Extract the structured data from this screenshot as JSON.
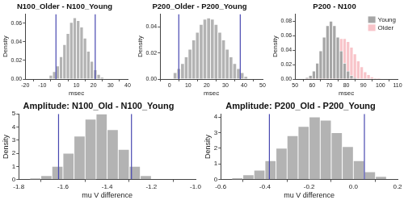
{
  "chart_data": [
    {
      "type": "histogram",
      "title": "N100_Older - N100_Young",
      "x_label": "msec",
      "y_label": "Density",
      "bins": [
        -6,
        -4,
        -2,
        0,
        2,
        4,
        6,
        8,
        10,
        12,
        14,
        16,
        18,
        20,
        22,
        24,
        26
      ],
      "values": [
        0.004,
        0.008,
        0.014,
        0.024,
        0.037,
        0.049,
        0.061,
        0.066,
        0.063,
        0.056,
        0.044,
        0.03,
        0.019,
        0.01,
        0.005,
        0.002
      ],
      "color": "#b3b3b3",
      "ci_lines": [
        -2,
        21
      ],
      "xlim": [
        -20,
        40
      ],
      "xticks": [
        -20,
        -10,
        0,
        10,
        20,
        30,
        40
      ],
      "ylim": [
        0,
        0.07
      ],
      "yticks": [
        {
          "value": 0,
          "label": "0.00"
        },
        {
          "value": 0.02,
          "label": "0.02"
        },
        {
          "value": 0.04,
          "label": "0.04"
        },
        {
          "value": 0.06,
          "label": "0.06"
        }
      ],
      "grid": false
    },
    {
      "type": "histogram",
      "title": "P200_Older - P200_Young",
      "x_label": "msec",
      "y_label": "Density",
      "bins": [
        2,
        4,
        6,
        8,
        10,
        12,
        14,
        16,
        18,
        20,
        22,
        24,
        26,
        28,
        30,
        32,
        34,
        36,
        38,
        40,
        42
      ],
      "values": [
        0.005,
        0.008,
        0.012,
        0.017,
        0.023,
        0.03,
        0.036,
        0.042,
        0.046,
        0.047,
        0.046,
        0.042,
        0.036,
        0.03,
        0.023,
        0.017,
        0.012,
        0.008,
        0.005,
        0.002
      ],
      "color": "#b3b3b3",
      "ci_lines": [
        5,
        38
      ],
      "xlim": [
        -5,
        50
      ],
      "xticks": [
        0,
        10,
        20,
        30,
        40,
        50
      ],
      "ylim": [
        0,
        0.05
      ],
      "yticks": [
        {
          "value": 0,
          "label": "0.00"
        },
        {
          "value": 0.02,
          "label": "0.02"
        },
        {
          "value": 0.04,
          "label": "0.04"
        }
      ],
      "grid": false
    },
    {
      "type": "histogram",
      "title": "P200 - N100",
      "x_label": "msec",
      "y_label": "Density",
      "bins": [
        56,
        58,
        60,
        62,
        64,
        66,
        68,
        70,
        72,
        74,
        76,
        78,
        80,
        82,
        84,
        86,
        88,
        90,
        92,
        94,
        96,
        98,
        100
      ],
      "series": [
        {
          "name": "Young",
          "color": "#a6a6a6",
          "values": [
            0.002,
            0.005,
            0.011,
            0.022,
            0.039,
            0.058,
            0.074,
            0.08,
            0.074,
            0.058,
            0.039,
            0.022,
            0.011,
            0.005,
            0.002,
            0,
            0,
            0,
            0,
            0,
            0,
            0
          ]
        },
        {
          "name": "Older",
          "color": "#f4a0a8",
          "values": [
            0.001,
            0.001,
            0.003,
            0.006,
            0.01,
            0.017,
            0.025,
            0.035,
            0.044,
            0.052,
            0.056,
            0.056,
            0.052,
            0.044,
            0.035,
            0.025,
            0.017,
            0.01,
            0.006,
            0.003,
            0.001,
            0.001
          ]
        }
      ],
      "legend": "top-right",
      "xlim": [
        50,
        110
      ],
      "xticks": [
        50,
        60,
        70,
        80,
        90,
        100,
        110
      ],
      "ylim": [
        0,
        0.09
      ],
      "yticks": [
        {
          "value": 0,
          "label": "0.00"
        },
        {
          "value": 0.02,
          "label": "0.02"
        },
        {
          "value": 0.04,
          "label": "0.04"
        },
        {
          "value": 0.06,
          "label": "0.06"
        },
        {
          "value": 0.08,
          "label": "0.08"
        }
      ],
      "grid": false
    },
    {
      "type": "histogram",
      "title": "Amplitude: N100_Old - N100_Young",
      "x_label": "mu V difference",
      "y_label": "Density",
      "bins": [
        -1.75,
        -1.7,
        -1.65,
        -1.6,
        -1.55,
        -1.5,
        -1.45,
        -1.4,
        -1.35,
        -1.3,
        -1.25,
        -1.2
      ],
      "values": [
        0.1,
        0.3,
        1.0,
        2.0,
        3.3,
        4.6,
        5.0,
        3.8,
        2.3,
        1.0,
        0.3
      ],
      "color": "#b3b3b3",
      "ci_lines": [
        -1.62,
        -1.29
      ],
      "xlim": [
        -1.8,
        -1.0
      ],
      "xticks": [
        -1.8,
        -1.6,
        -1.4,
        -1.2,
        {
          "value": -1.0,
          "label": "-1.0"
        }
      ],
      "ylim": [
        0,
        5
      ],
      "yticks": [
        0,
        1,
        2,
        3,
        4,
        5
      ],
      "grid": false
    },
    {
      "type": "histogram",
      "title": "Amplitude: P200_Old - P200_Young",
      "x_label": "mu V difference",
      "y_label": "Density",
      "bins": [
        -0.55,
        -0.5,
        -0.45,
        -0.4,
        -0.35,
        -0.3,
        -0.25,
        -0.2,
        -0.15,
        -0.1,
        -0.05,
        0,
        0.05,
        0.1,
        0.15
      ],
      "values": [
        0.1,
        0.3,
        0.6,
        1.2,
        2.0,
        2.8,
        3.4,
        4.0,
        3.8,
        3.0,
        2.1,
        1.2,
        0.5,
        0.2
      ],
      "color": "#b3b3b3",
      "ci_lines": [
        -0.38,
        0.05
      ],
      "xlim": [
        -0.6,
        0.2
      ],
      "xticks": [
        -0.6,
        -0.4,
        -0.2,
        {
          "value": 0,
          "label": "0.0"
        },
        0.2
      ],
      "ylim": [
        0,
        4.2
      ],
      "yticks": [
        0,
        1,
        2,
        3,
        4
      ],
      "grid": false
    }
  ]
}
